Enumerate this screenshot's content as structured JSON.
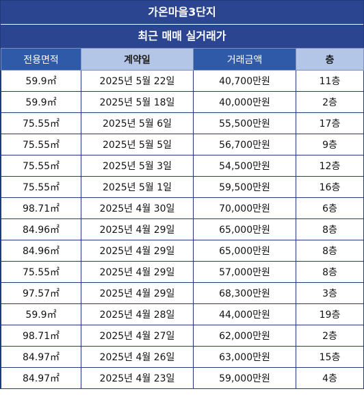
{
  "title": "가온마을3단지",
  "subtitle": "최근 매매 실거래가",
  "headers": [
    "전용면적",
    "계약일",
    "거래금액",
    "층"
  ],
  "rows": [
    [
      "59.9㎡",
      "2025년 5월 22일",
      "40,700만원",
      "11층"
    ],
    [
      "59.9㎡",
      "2025년 5월 18일",
      "40,000만원",
      "2층"
    ],
    [
      "75.55㎡",
      "2025년 5월 6일",
      "55,500만원",
      "17층"
    ],
    [
      "75.55㎡",
      "2025년 5월 5일",
      "56,700만원",
      "9층"
    ],
    [
      "75.55㎡",
      "2025년 5월 3일",
      "54,500만원",
      "12층"
    ],
    [
      "75.55㎡",
      "2025년 5월 1일",
      "59,500만원",
      "16층"
    ],
    [
      "98.71㎡",
      "2025년 4월 30일",
      "70,000만원",
      "6층"
    ],
    [
      "84.96㎡",
      "2025년 4월 29일",
      "65,000만원",
      "8층"
    ],
    [
      "84.96㎡",
      "2025년 4월 29일",
      "65,000만원",
      "8층"
    ],
    [
      "75.55㎡",
      "2025년 4월 29일",
      "57,000만원",
      "8층"
    ],
    [
      "97.57㎡",
      "2025년 4월 29일",
      "68,300만원",
      "3층"
    ],
    [
      "59.9㎡",
      "2025년 4월 28일",
      "44,000만원",
      "19층"
    ],
    [
      "98.71㎡",
      "2025년 4월 27일",
      "62,000만원",
      "2층"
    ],
    [
      "84.97㎡",
      "2025년 4월 26일",
      "63,000만원",
      "15층"
    ],
    [
      "84.97㎡",
      "2025년 4월 23일",
      "59,000만원",
      "4층"
    ]
  ]
}
